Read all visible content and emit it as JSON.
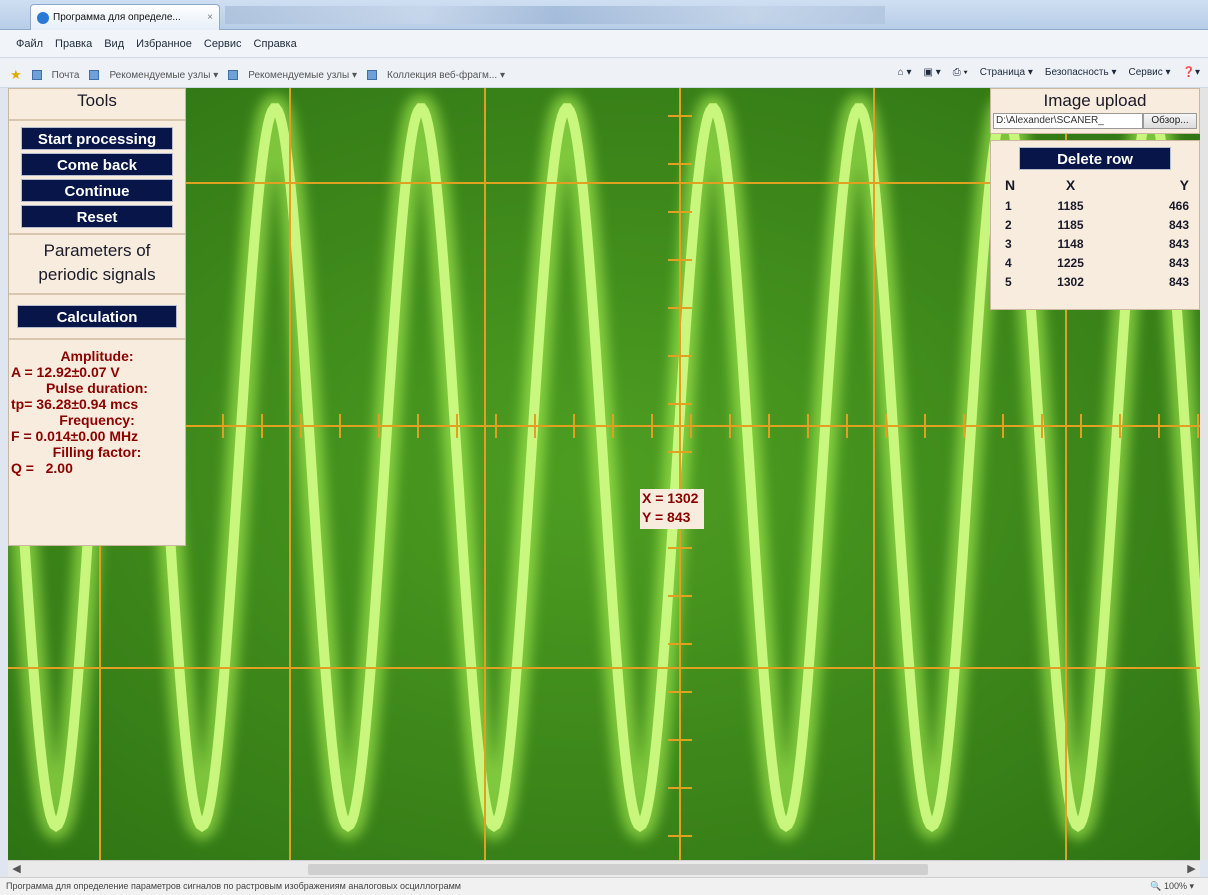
{
  "browser": {
    "tab_title": "Программа для определе...",
    "tab_close": "×",
    "menu": [
      "Файл",
      "Правка",
      "Вид",
      "Избранное",
      "Сервис",
      "Справка"
    ],
    "favorites": [
      "Почта",
      "Рекомендуемые узлы ▾",
      "Рекомендуемые узлы ▾",
      "Коллекция веб-фрагм... ▾"
    ],
    "toolbar_right": [
      "Страница ▾",
      "Безопасность ▾",
      "Сервис ▾"
    ]
  },
  "tools": {
    "title": "Tools",
    "buttons": [
      "Start processing",
      "Come back",
      "Continue",
      "Reset"
    ],
    "params_title_line1": "Parameters of",
    "params_title_line2": "periodic signals",
    "calc_button": "Calculation",
    "results": {
      "amplitude_label": "Amplitude:",
      "amplitude_value": "A = 12.92±0.07 V",
      "pulse_label": "Pulse duration:",
      "pulse_value": "tp= 36.28±0.94 mcs",
      "frequency_label": "Frequency:",
      "frequency_value": "F = 0.014±0.00 MHz",
      "filling_label": "Filling factor:",
      "filling_value": "Q =   2.00"
    }
  },
  "upload": {
    "title": "Image upload",
    "path": "D:\\Alexander\\SCANER_",
    "browse": "Обзор..."
  },
  "table": {
    "delete_button": "Delete row",
    "headers": [
      "N",
      "X",
      "Y"
    ],
    "rows": [
      [
        "1",
        "1185",
        "466"
      ],
      [
        "2",
        "1185",
        "843"
      ],
      [
        "3",
        "1148",
        "843"
      ],
      [
        "4",
        "1225",
        "843"
      ],
      [
        "5",
        "1302",
        "843"
      ]
    ]
  },
  "cursor_readout": {
    "x": "X = 1302",
    "y": "Y = 843"
  },
  "status": {
    "text": "Программа для определение параметров сигналов по растровым изображениям аналоговых осциллограмм",
    "zoom": "100%"
  },
  "colors": {
    "scope_bg": "#3f8c1c",
    "trace": "#b8ff5a",
    "grid": "#e0a020",
    "button": "#071548",
    "result_text": "#8b0000"
  }
}
